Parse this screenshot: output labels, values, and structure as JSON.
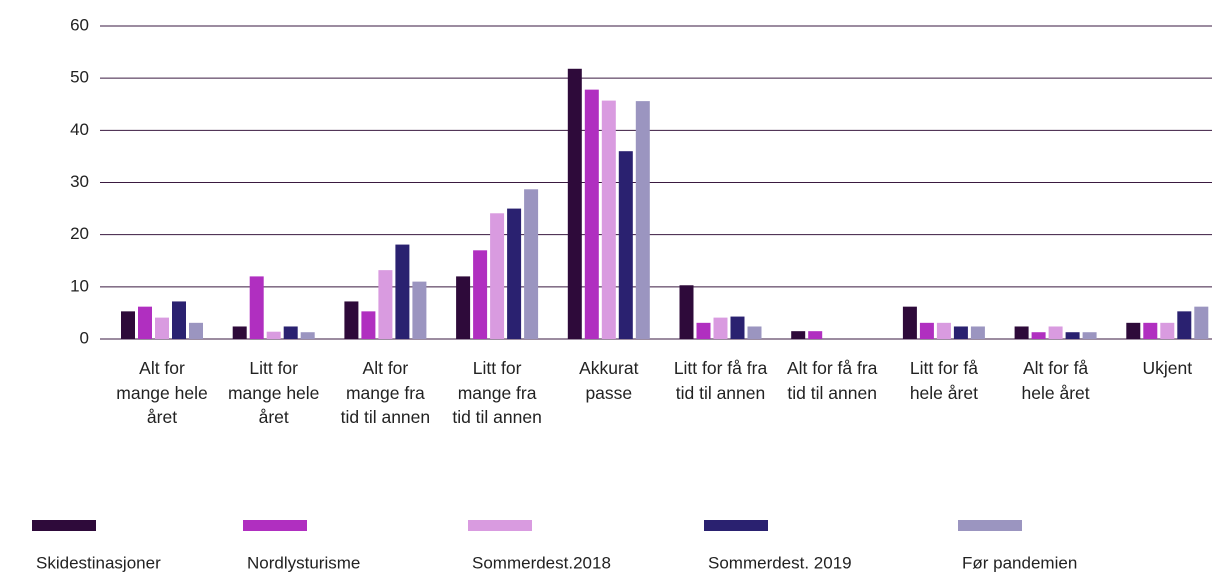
{
  "chart_data": {
    "type": "bar",
    "categories": [
      "Alt for mange hele året",
      "Litt for mange hele året",
      "Alt for mange fra tid til annen",
      "Litt for mange fra tid til annen",
      "Akkurat passe",
      "Litt for få fra tid til annen",
      "Alt for få fra tid til annen",
      "Litt for få hele året",
      "Alt for få hele året",
      "Ukjent"
    ],
    "series": [
      {
        "name": "Skidestinasjoner",
        "color": "#2e0a3a",
        "values": [
          5.3,
          2.4,
          7.2,
          12,
          51.8,
          10.3,
          1.5,
          6.2,
          2.4,
          3.1
        ]
      },
      {
        "name": "Nordlysturisme",
        "color": "#b02fc0",
        "values": [
          6.2,
          12,
          5.3,
          17,
          47.8,
          3.1,
          1.5,
          3.1,
          1.3,
          3.1
        ]
      },
      {
        "name": "Sommerdest.2018",
        "color": "#d99be0",
        "values": [
          4.1,
          1.4,
          13.2,
          24.1,
          45.7,
          4.1,
          0,
          3.1,
          2.4,
          3.1
        ]
      },
      {
        "name": "Sommerdest. 2019",
        "color": "#2a2170",
        "values": [
          7.2,
          2.4,
          18.1,
          25,
          36,
          4.3,
          0,
          2.4,
          1.3,
          5.3
        ]
      },
      {
        "name": "Før pandemien",
        "color": "#9b95c0",
        "values": [
          3.1,
          1.3,
          11,
          28.7,
          45.6,
          2.4,
          0,
          2.4,
          1.3,
          6.2
        ]
      }
    ],
    "ylim": [
      0,
      60
    ],
    "yticks": [
      0,
      10,
      20,
      30,
      40,
      50,
      60
    ],
    "grid": true,
    "legend": "bottom"
  }
}
